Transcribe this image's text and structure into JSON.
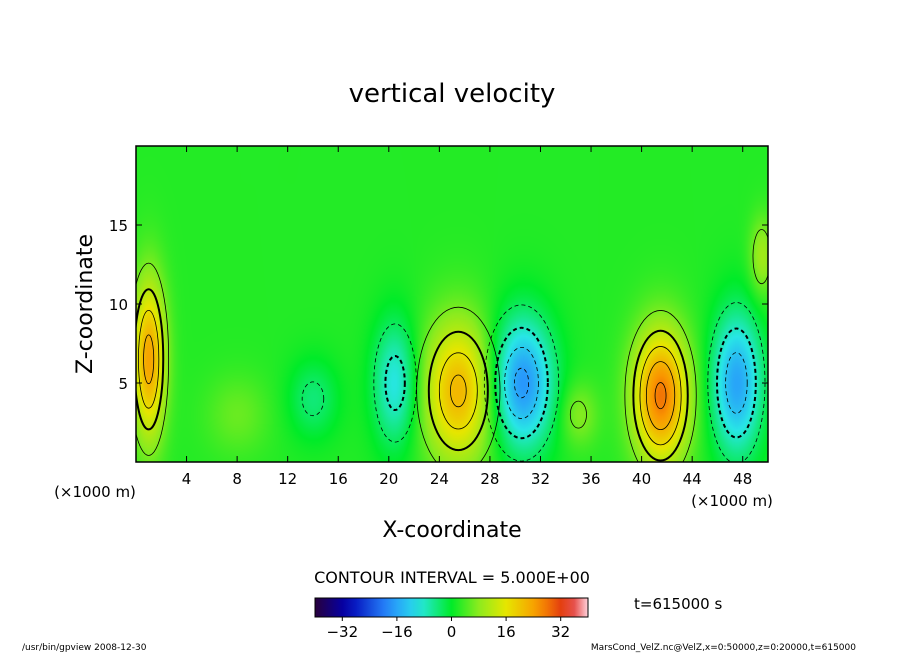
{
  "chart_data": {
    "type": "heatmap",
    "title": "vertical velocity",
    "xlabel": "X-coordinate",
    "ylabel": "Z-coordinate",
    "x_unit_left": "(×1000 m)",
    "x_unit_right": "(×1000 m)",
    "xlim": [
      0,
      50
    ],
    "ylim": [
      0,
      20
    ],
    "x_ticks": [
      4,
      8,
      12,
      16,
      20,
      24,
      28,
      32,
      36,
      40,
      44,
      48
    ],
    "x_tick_labels": [
      "4",
      "8",
      "12",
      "16",
      "20",
      "24",
      "28",
      "32",
      "36",
      "40",
      "44",
      "48"
    ],
    "y_ticks": [
      5,
      10,
      15
    ],
    "y_tick_labels": [
      "5",
      "10",
      "15"
    ],
    "contour_interval_text": "CONTOUR INTERVAL = 5.000E+00",
    "time_label": "t=615000 s",
    "colorbar": {
      "range": [
        -40,
        40
      ],
      "ticks": [
        -32,
        -16,
        0,
        16,
        32
      ],
      "tick_labels": [
        "−32",
        "−16",
        "0",
        "16",
        "32"
      ]
    },
    "grid": false,
    "features": [
      {
        "x": 1.0,
        "z": 6.5,
        "value": 22,
        "rx": 1.3,
        "rz": 5.0
      },
      {
        "x": 25.5,
        "z": 4.5,
        "value": 20,
        "rx": 2.8,
        "rz": 4.5
      },
      {
        "x": 41.5,
        "z": 4.2,
        "value": 26,
        "rx": 2.2,
        "rz": 4.2
      },
      {
        "x": 49.5,
        "z": 13.0,
        "value": 8,
        "rx": 1.0,
        "rz": 2.5
      },
      {
        "x": 30.5,
        "z": 5.0,
        "value": -20,
        "rx": 2.5,
        "rz": 4.2
      },
      {
        "x": 47.5,
        "z": 5.0,
        "value": -18,
        "rx": 2.0,
        "rz": 4.5
      },
      {
        "x": 20.5,
        "z": 5.0,
        "value": -12,
        "rx": 1.8,
        "rz": 4.0
      },
      {
        "x": 14.0,
        "z": 4.0,
        "value": -6,
        "rx": 2.0,
        "rz": 2.5
      },
      {
        "x": 8.0,
        "z": 3.0,
        "value": 4,
        "rx": 2.5,
        "rz": 2.5
      },
      {
        "x": 35.0,
        "z": 3.0,
        "value": 6,
        "rx": 1.5,
        "rz": 2.0
      }
    ]
  },
  "footer": {
    "left": "/usr/bin/gpview   2008-12-30",
    "right": "MarsCond_VelZ.nc@VelZ,x=0:50000,z=0:20000,t=615000"
  }
}
